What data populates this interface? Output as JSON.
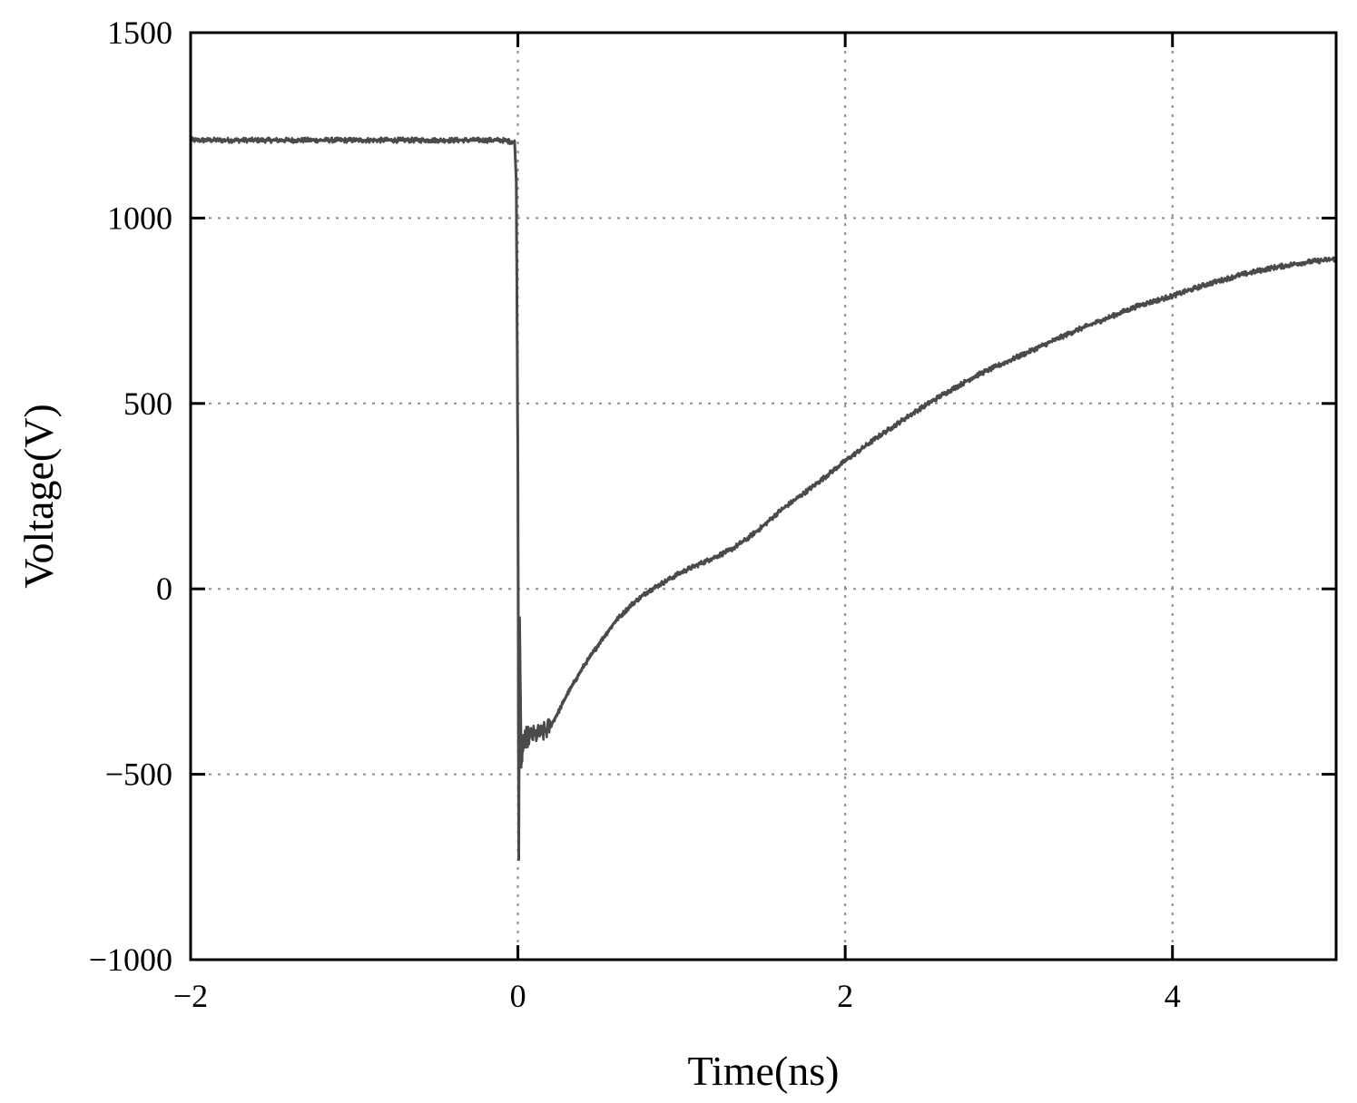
{
  "chart_data": {
    "type": "line",
    "title": "",
    "xlabel": "Time(ns)",
    "ylabel": "Voltage(V)",
    "xlim": [
      -2,
      5
    ],
    "ylim": [
      -1000,
      1500
    ],
    "xticks": [
      -2,
      0,
      2,
      4
    ],
    "xtick_labels": [
      "−2",
      "0",
      "2",
      "4"
    ],
    "yticks": [
      -1000,
      -500,
      0,
      500,
      1000,
      1500
    ],
    "ytick_labels": [
      "−1000",
      "−500",
      "0",
      "500",
      "1000",
      "1500"
    ],
    "grid": true,
    "line_color": "#4a4a4a",
    "series": [
      {
        "x": [
          -2.0,
          -1.5,
          -1.0,
          -0.5,
          -0.1,
          -0.02,
          -0.01,
          0.0,
          0.005,
          0.01,
          0.02,
          0.03,
          0.05,
          0.1,
          0.15,
          0.2,
          0.25,
          0.3,
          0.4,
          0.5,
          0.6,
          0.7,
          0.8,
          0.9,
          1.0,
          1.1,
          1.2,
          1.3,
          1.4,
          1.5,
          1.6,
          1.8,
          2.0,
          2.2,
          2.4,
          2.6,
          2.8,
          3.0,
          3.2,
          3.4,
          3.6,
          3.8,
          4.0,
          4.2,
          4.4,
          4.6,
          4.8,
          5.0
        ],
        "y": [
          1210,
          1210,
          1210,
          1210,
          1210,
          1205,
          1100,
          300,
          -730,
          -80,
          -470,
          -420,
          -400,
          -395,
          -390,
          -370,
          -330,
          -285,
          -210,
          -145,
          -85,
          -40,
          -5,
          20,
          45,
          65,
          85,
          105,
          135,
          170,
          210,
          275,
          345,
          410,
          470,
          525,
          575,
          615,
          655,
          695,
          730,
          765,
          790,
          820,
          845,
          865,
          880,
          890
        ]
      }
    ]
  }
}
